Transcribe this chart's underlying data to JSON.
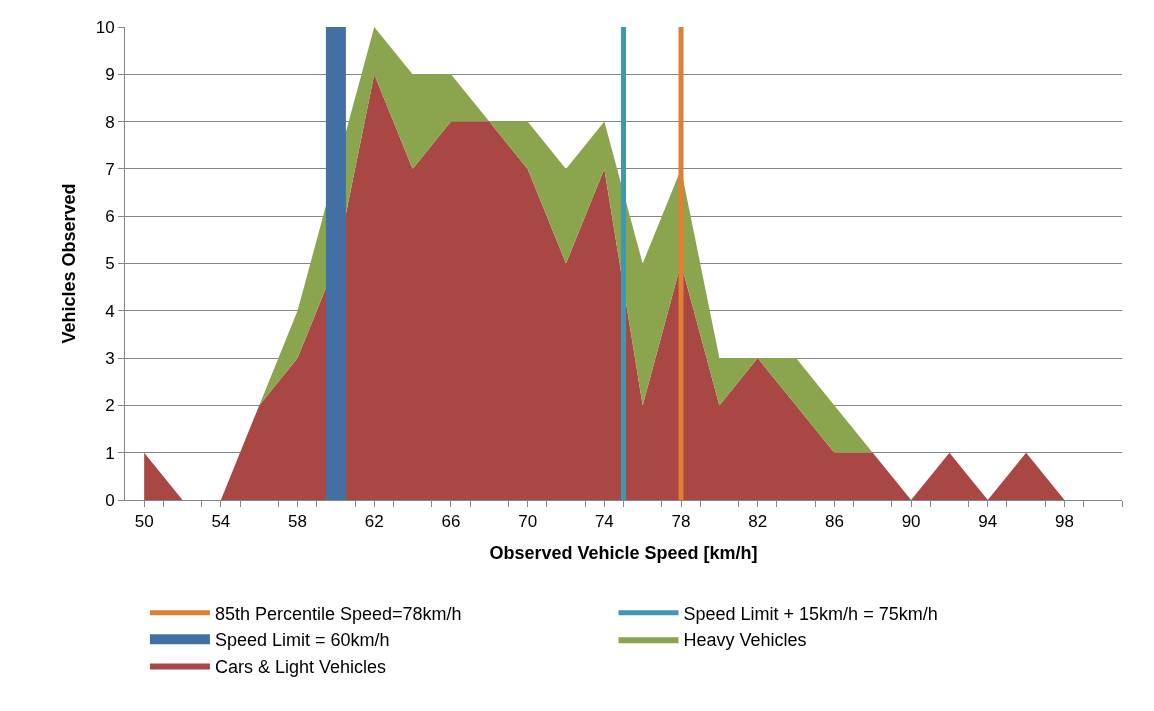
{
  "chart_data": {
    "type": "area",
    "stacked": true,
    "xlabel": "Observed Vehicle Speed [km/h]",
    "ylabel": "Vehicles Observed",
    "x": [
      50,
      52,
      54,
      56,
      58,
      60,
      62,
      64,
      66,
      68,
      70,
      72,
      74,
      76,
      78,
      80,
      82,
      84,
      86,
      88,
      90,
      92,
      94,
      96,
      98
    ],
    "series": [
      {
        "name": "Cars & Light Vehicles",
        "color": "#a94744",
        "values": [
          1,
          0,
          0,
          2,
          3,
          5,
          9,
          7,
          8,
          8,
          7,
          5,
          7,
          2,
          5,
          2,
          3,
          2,
          1,
          1,
          0,
          1,
          0,
          1,
          0
        ]
      },
      {
        "name": "Heavy Vehicles",
        "color": "#8ba54e",
        "values": [
          0,
          0,
          0,
          0,
          1,
          2,
          1,
          2,
          1,
          0,
          1,
          2,
          1,
          3,
          2,
          1,
          0,
          1,
          1,
          0,
          0,
          0,
          0,
          0,
          0
        ]
      }
    ],
    "ref_lines": [
      {
        "axis": "x",
        "value": 60,
        "label": "Speed Limit = 60km/h",
        "color": "#4270a5"
      },
      {
        "axis": "x",
        "value": 75,
        "label": "Speed Limit + 15km/h = 75km/h",
        "color": "#4196b0"
      },
      {
        "axis": "x",
        "value": 78,
        "label": "85th Percentile Speed=78km/h",
        "color": "#e07f35"
      }
    ],
    "xlim": [
      49,
      101
    ],
    "xticks": [
      50,
      {
        "value": 51,
        "label": null
      },
      {
        "value": 53,
        "label": null
      },
      54,
      {
        "value": 55,
        "label": null
      },
      {
        "value": 57,
        "label": null
      },
      58,
      {
        "value": 59,
        "label": null
      },
      {
        "value": 61,
        "label": null
      },
      62,
      {
        "value": 63,
        "label": null
      },
      {
        "value": 65,
        "label": null
      },
      66,
      {
        "value": 67,
        "label": null
      },
      {
        "value": 69,
        "label": null
      },
      70,
      {
        "value": 71,
        "label": null
      },
      {
        "value": 73,
        "label": null
      },
      74,
      {
        "value": 75,
        "label": null
      },
      {
        "value": 77,
        "label": null
      },
      78,
      {
        "value": 79,
        "label": null
      },
      {
        "value": 81,
        "label": null
      },
      82,
      {
        "value": 83,
        "label": null
      },
      {
        "value": 85,
        "label": null
      },
      86,
      {
        "value": 87,
        "label": null
      },
      {
        "value": 89,
        "label": null
      },
      90,
      {
        "value": 91,
        "label": null
      },
      {
        "value": 93,
        "label": null
      },
      94,
      {
        "value": 95,
        "label": null
      },
      {
        "value": 97,
        "label": null
      },
      98,
      {
        "value": 99,
        "label": null
      },
      {
        "value": 101,
        "label": null
      }
    ],
    "ylim": [
      0,
      10
    ],
    "yticks": [
      0,
      1,
      2,
      3,
      4,
      5,
      6,
      7,
      8,
      9,
      10
    ],
    "grid": "y",
    "legend": "bottom"
  }
}
